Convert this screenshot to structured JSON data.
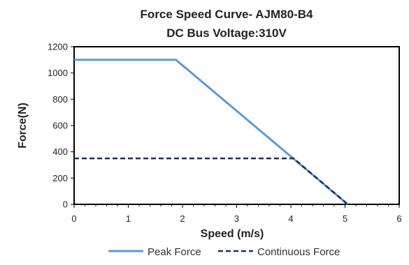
{
  "chart_data": {
    "type": "line",
    "title": "Force Speed Curve- AJM80-B4",
    "subtitle": "DC Bus  Voltage:310V",
    "xlabel": "Speed (m/s)",
    "ylabel": "Force(N)",
    "xlim": [
      0,
      6
    ],
    "ylim": [
      0,
      1200
    ],
    "xticks": [
      0,
      1,
      2,
      3,
      4,
      5,
      6
    ],
    "yticks": [
      0,
      200,
      400,
      600,
      800,
      1000,
      1200
    ],
    "grid": false,
    "legend_position": "bottom",
    "series": [
      {
        "name": "Peak Force",
        "color": "#5b9bd5",
        "dash": "solid",
        "points": [
          [
            0,
            1100
          ],
          [
            1.88,
            1100
          ],
          [
            5.05,
            0
          ]
        ]
      },
      {
        "name": "Continuous Force",
        "color": "#1f2d5c",
        "dash": "dashed",
        "points": [
          [
            0,
            350
          ],
          [
            4.05,
            350
          ],
          [
            5.05,
            0
          ]
        ]
      }
    ]
  }
}
